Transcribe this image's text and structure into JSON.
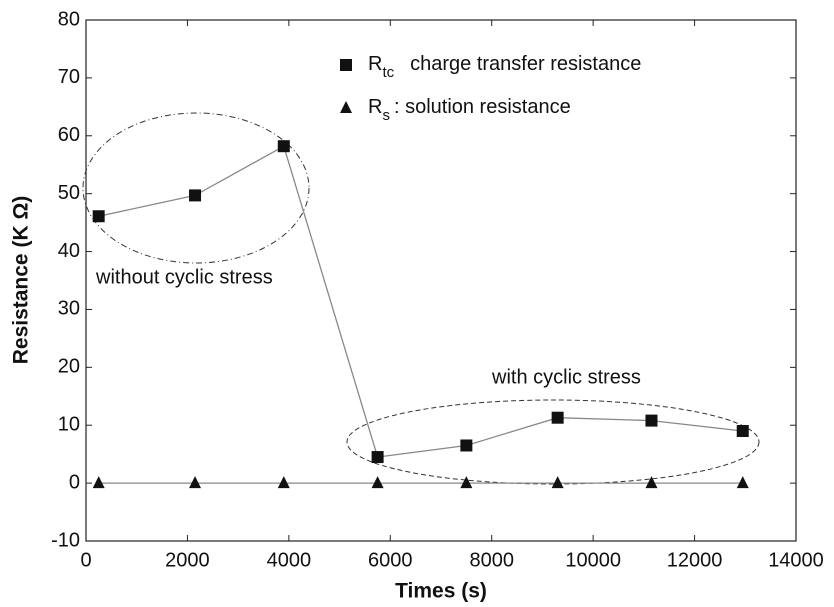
{
  "chart_data": {
    "type": "line",
    "x_label": "Times (s)",
    "y_label": "Resistance (K Ω)",
    "x": [
      250,
      2150,
      3900,
      5750,
      7500,
      9300,
      11150,
      12950
    ],
    "series": [
      {
        "name": "R",
        "name_sub": "tc",
        "name_rest": "charge transfer resistance",
        "marker": "square",
        "color": "#111111",
        "values": [
          46.1,
          49.7,
          58.2,
          4.5,
          6.5,
          11.3,
          10.8,
          9.0
        ]
      },
      {
        "name": "R",
        "name_sub": "s",
        "name_rest": ": solution resistance",
        "marker": "triangle",
        "color": "#111111",
        "values": [
          0,
          0,
          0,
          0,
          0,
          0,
          0,
          0
        ]
      }
    ],
    "annotations": [
      "without cyclic stress",
      "with cyclic stress"
    ],
    "xlim": [
      0,
      14000
    ],
    "xticks": [
      0,
      2000,
      4000,
      6000,
      8000,
      10000,
      12000,
      14000
    ],
    "ylim": [
      -10,
      80
    ],
    "yticks": [
      -10,
      0,
      10,
      20,
      30,
      40,
      50,
      60,
      70,
      80
    ]
  }
}
